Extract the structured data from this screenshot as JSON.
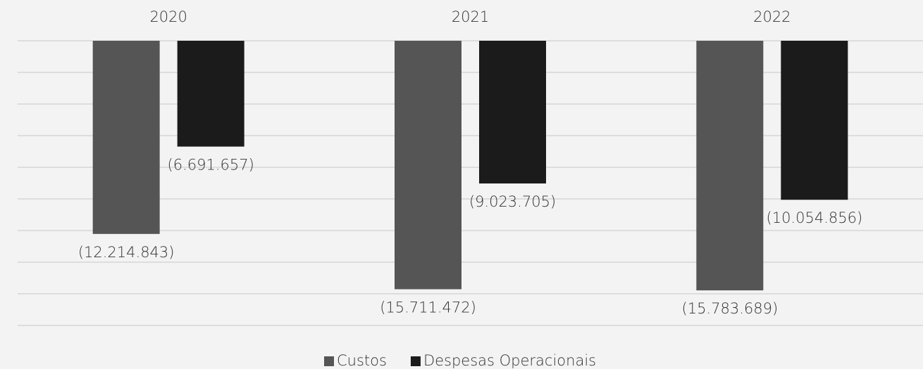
{
  "chart_data": {
    "type": "bar",
    "categories": [
      "2020",
      "2021",
      "2022"
    ],
    "series": [
      {
        "name": "Custos",
        "color": "#555555",
        "values": [
          -12214843,
          -15711472,
          -15783689
        ],
        "value_labels": [
          "(12.214.843)",
          "(15.711.472)",
          "(15.783.689)"
        ]
      },
      {
        "name": "Despesas Operacionais",
        "color": "#1b1b1b",
        "values": [
          -6691657,
          -9023705,
          -10054856
        ],
        "value_labels": [
          "(6.691.657)",
          "(9.023.705)",
          "(10.054.856)"
        ]
      }
    ],
    "ylim": [
      -18000000,
      0
    ],
    "yticks": [
      0,
      -2000000,
      -4000000,
      -6000000,
      -8000000,
      -10000000,
      -12000000,
      -14000000,
      -16000000,
      -18000000
    ],
    "grid": true,
    "legend": "bottom"
  }
}
